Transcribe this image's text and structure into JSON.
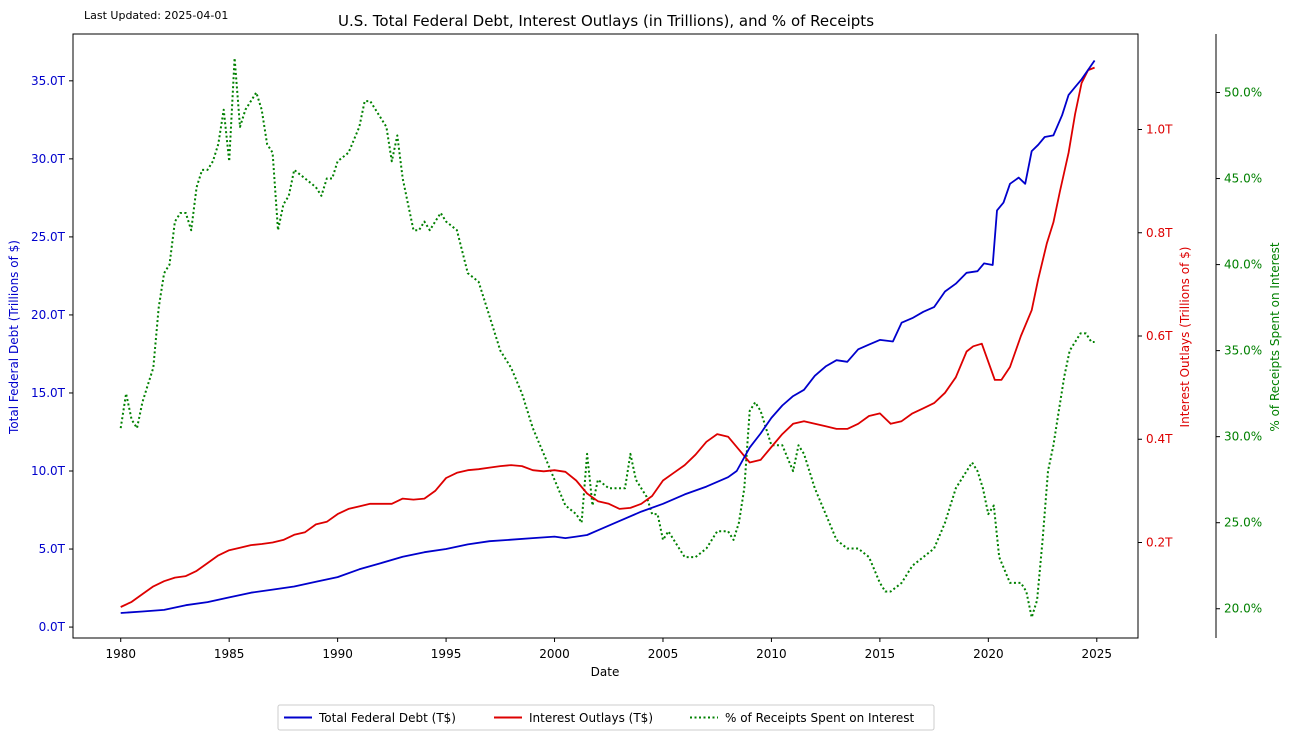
{
  "chart_data": {
    "type": "line",
    "title": "U.S. Total Federal Debt, Interest Outlays (in Trillions), and % of Receipts",
    "annotation": "Last Updated: 2025-04-01",
    "xlabel": "Date",
    "xlim": [
      1977.8,
      2026.9
    ],
    "xticks": [
      1980,
      1985,
      1990,
      1995,
      2000,
      2005,
      2010,
      2015,
      2020,
      2025
    ],
    "xtick_labels": [
      "1980",
      "1985",
      "1990",
      "1995",
      "2000",
      "2005",
      "2010",
      "2015",
      "2020",
      "2025"
    ],
    "grid": false,
    "legend_position": "bottom-center-outside",
    "axes": {
      "left": {
        "label": "Total Federal Debt (Trillions of $)",
        "color": "#0000cc",
        "ylim": [
          -0.7,
          38.0
        ],
        "ticks": [
          0,
          5,
          10,
          15,
          20,
          25,
          30,
          35
        ],
        "tick_labels": [
          "0.0T",
          "5.0T",
          "10.0T",
          "15.0T",
          "20.0T",
          "25.0T",
          "30.0T",
          "35.0T"
        ]
      },
      "right": {
        "label": "Interest Outlays (Trillions of $)",
        "color": "#dd0000",
        "ylim": [
          0.015,
          1.185
        ],
        "ticks": [
          0.2,
          0.4,
          0.6,
          0.8,
          1.0
        ],
        "tick_labels": [
          "0.2T",
          "0.4T",
          "0.6T",
          "0.8T",
          "1.0T"
        ]
      },
      "right_outer": {
        "label": "% of Receipts Spent on Interest",
        "color": "#008000",
        "ylim": [
          18.3,
          53.4
        ],
        "ticks": [
          20,
          25,
          30,
          35,
          40,
          45,
          50
        ],
        "tick_labels": [
          "20.0%",
          "25.0%",
          "30.0%",
          "35.0%",
          "40.0%",
          "45.0%",
          "50.0%"
        ]
      }
    },
    "series": [
      {
        "name": "Total Federal Debt (T$)",
        "axis": "left",
        "color": "#0000cc",
        "style": "solid",
        "x": [
          1980.0,
          1981.0,
          1982.0,
          1983.0,
          1984.0,
          1985.0,
          1986.0,
          1987.0,
          1988.0,
          1989.0,
          1990.0,
          1991.0,
          1992.0,
          1993.0,
          1994.0,
          1995.0,
          1996.0,
          1997.0,
          1998.0,
          1999.0,
          2000.0,
          2000.5,
          2001.0,
          2001.5,
          2002.0,
          2003.0,
          2004.0,
          2005.0,
          2006.0,
          2007.0,
          2008.0,
          2008.4,
          2009.0,
          2009.5,
          2010.0,
          2010.5,
          2011.0,
          2011.5,
          2012.0,
          2012.5,
          2013.0,
          2013.5,
          2014.0,
          2014.5,
          2015.0,
          2015.6,
          2016.0,
          2016.5,
          2017.0,
          2017.5,
          2018.0,
          2018.5,
          2019.0,
          2019.5,
          2019.8,
          2020.2,
          2020.4,
          2020.7,
          2021.0,
          2021.4,
          2021.7,
          2022.0,
          2022.3,
          2022.6,
          2023.0,
          2023.4,
          2023.7,
          2024.0,
          2024.3,
          2024.6,
          2024.9
        ],
        "values": [
          0.9,
          1.0,
          1.1,
          1.4,
          1.6,
          1.9,
          2.2,
          2.4,
          2.6,
          2.9,
          3.2,
          3.7,
          4.1,
          4.5,
          4.8,
          5.0,
          5.3,
          5.5,
          5.6,
          5.7,
          5.8,
          5.7,
          5.8,
          5.9,
          6.2,
          6.8,
          7.4,
          7.9,
          8.5,
          9.0,
          9.6,
          10.0,
          11.5,
          12.4,
          13.4,
          14.2,
          14.8,
          15.2,
          16.1,
          16.7,
          17.1,
          17.0,
          17.8,
          18.1,
          18.4,
          18.3,
          19.5,
          19.8,
          20.2,
          20.5,
          21.5,
          22.0,
          22.7,
          22.8,
          23.3,
          23.2,
          26.7,
          27.2,
          28.4,
          28.8,
          28.4,
          30.5,
          30.9,
          31.4,
          31.5,
          32.8,
          34.1,
          34.6,
          35.1,
          35.7,
          36.3
        ]
      },
      {
        "name": "Interest Outlays (T$)",
        "axis": "right",
        "color": "#dd0000",
        "style": "solid",
        "x": [
          1980.0,
          1980.5,
          1981.0,
          1981.5,
          1982.0,
          1982.5,
          1983.0,
          1983.5,
          1984.0,
          1984.5,
          1985.0,
          1985.5,
          1986.0,
          1986.5,
          1987.0,
          1987.5,
          1988.0,
          1988.5,
          1989.0,
          1989.5,
          1990.0,
          1990.5,
          1991.0,
          1991.5,
          1992.0,
          1992.5,
          1993.0,
          1993.5,
          1994.0,
          1994.5,
          1995.0,
          1995.5,
          1996.0,
          1996.5,
          1997.0,
          1997.5,
          1998.0,
          1998.5,
          1999.0,
          1999.5,
          2000.0,
          2000.5,
          2001.0,
          2001.5,
          2002.0,
          2002.5,
          2003.0,
          2003.5,
          2004.0,
          2004.5,
          2005.0,
          2005.5,
          2006.0,
          2006.5,
          2007.0,
          2007.5,
          2008.0,
          2008.5,
          2009.0,
          2009.5,
          2010.0,
          2010.5,
          2011.0,
          2011.5,
          2012.0,
          2012.5,
          2013.0,
          2013.5,
          2014.0,
          2014.5,
          2015.0,
          2015.5,
          2016.0,
          2016.5,
          2017.0,
          2017.5,
          2018.0,
          2018.5,
          2019.0,
          2019.3,
          2019.7,
          2020.0,
          2020.3,
          2020.6,
          2021.0,
          2021.5,
          2022.0,
          2022.3,
          2022.7,
          2023.0,
          2023.3,
          2023.7,
          2024.0,
          2024.3,
          2024.6,
          2024.9
        ],
        "values": [
          0.075,
          0.085,
          0.1,
          0.115,
          0.125,
          0.132,
          0.135,
          0.145,
          0.16,
          0.175,
          0.185,
          0.19,
          0.195,
          0.197,
          0.2,
          0.205,
          0.215,
          0.22,
          0.235,
          0.24,
          0.255,
          0.265,
          0.27,
          0.275,
          0.275,
          0.275,
          0.285,
          0.283,
          0.285,
          0.3,
          0.325,
          0.335,
          0.34,
          0.342,
          0.345,
          0.348,
          0.35,
          0.348,
          0.34,
          0.338,
          0.34,
          0.337,
          0.32,
          0.295,
          0.28,
          0.275,
          0.265,
          0.267,
          0.275,
          0.29,
          0.32,
          0.335,
          0.35,
          0.37,
          0.395,
          0.41,
          0.405,
          0.38,
          0.355,
          0.36,
          0.385,
          0.41,
          0.43,
          0.435,
          0.43,
          0.425,
          0.42,
          0.42,
          0.43,
          0.445,
          0.45,
          0.43,
          0.435,
          0.45,
          0.46,
          0.47,
          0.49,
          0.52,
          0.57,
          0.58,
          0.585,
          0.55,
          0.515,
          0.515,
          0.54,
          0.6,
          0.65,
          0.71,
          0.78,
          0.82,
          0.88,
          0.955,
          1.03,
          1.09,
          1.115,
          1.12
        ]
      },
      {
        "name": "% of Receipts Spent on Interest",
        "axis": "right_outer",
        "color": "#008000",
        "style": "dotted",
        "x": [
          1980.0,
          1980.25,
          1980.5,
          1980.75,
          1981.0,
          1981.25,
          1981.5,
          1981.75,
          1982.0,
          1982.25,
          1982.5,
          1982.75,
          1983.0,
          1983.25,
          1983.5,
          1983.75,
          1984.0,
          1984.25,
          1984.5,
          1984.75,
          1985.0,
          1985.25,
          1985.5,
          1985.75,
          1986.0,
          1986.25,
          1986.5,
          1986.75,
          1987.0,
          1987.25,
          1987.5,
          1987.75,
          1988.0,
          1988.5,
          1989.0,
          1989.25,
          1989.5,
          1989.75,
          1990.0,
          1990.5,
          1991.0,
          1991.25,
          1991.5,
          1991.75,
          1992.0,
          1992.25,
          1992.5,
          1992.75,
          1993.0,
          1993.25,
          1993.5,
          1993.75,
          1994.0,
          1994.25,
          1994.5,
          1994.75,
          1995.0,
          1995.5,
          1996.0,
          1996.5,
          1997.0,
          1997.5,
          1998.0,
          1998.5,
          1999.0,
          1999.5,
          2000.0,
          2000.5,
          2001.0,
          2001.25,
          2001.5,
          2001.75,
          2002.0,
          2002.5,
          2003.0,
          2003.25,
          2003.5,
          2003.75,
          2004.0,
          2004.25,
          2004.5,
          2004.75,
          2005.0,
          2005.25,
          2005.5,
          2005.75,
          2006.0,
          2006.5,
          2007.0,
          2007.5,
          2008.0,
          2008.25,
          2008.5,
          2008.75,
          2009.0,
          2009.25,
          2009.5,
          2009.75,
          2010.0,
          2010.5,
          2011.0,
          2011.25,
          2011.5,
          2012.0,
          2012.5,
          2013.0,
          2013.5,
          2014.0,
          2014.5,
          2015.0,
          2015.25,
          2015.5,
          2016.0,
          2016.5,
          2017.0,
          2017.5,
          2018.0,
          2018.5,
          2019.0,
          2019.25,
          2019.5,
          2019.75,
          2020.0,
          2020.25,
          2020.5,
          2021.0,
          2021.5,
          2021.75,
          2022.0,
          2022.25,
          2022.5,
          2022.75,
          2023.0,
          2023.25,
          2023.5,
          2023.75,
          2024.0,
          2024.25,
          2024.5,
          2024.75,
          2024.9
        ],
        "values": [
          30.5,
          32.5,
          31.0,
          30.5,
          32.0,
          33.0,
          34.0,
          37.5,
          39.5,
          40.0,
          42.5,
          43.0,
          43.0,
          42.0,
          44.5,
          45.5,
          45.5,
          46.0,
          47.0,
          49.0,
          46.0,
          52.0,
          48.0,
          49.0,
          49.5,
          50.0,
          49.0,
          47.0,
          46.5,
          42.0,
          43.5,
          44.0,
          45.5,
          45.0,
          44.5,
          44.0,
          45.0,
          45.0,
          46.0,
          46.5,
          48.0,
          49.5,
          49.5,
          49.0,
          48.5,
          48.0,
          46.0,
          47.5,
          45.0,
          43.5,
          42.0,
          42.0,
          42.5,
          42.0,
          42.5,
          43.0,
          42.5,
          42.0,
          39.5,
          39.0,
          37.0,
          35.0,
          34.0,
          32.5,
          30.5,
          29.0,
          27.5,
          26.0,
          25.5,
          25.0,
          29.0,
          26.0,
          27.5,
          27.0,
          27.0,
          27.0,
          29.0,
          27.5,
          27.0,
          26.5,
          25.5,
          25.5,
          24.0,
          24.5,
          24.0,
          23.5,
          23.0,
          23.0,
          23.5,
          24.5,
          24.5,
          24.0,
          25.0,
          27.0,
          31.5,
          32.0,
          31.5,
          30.5,
          29.5,
          29.5,
          28.0,
          29.5,
          29.0,
          27.0,
          25.5,
          24.0,
          23.5,
          23.5,
          23.0,
          21.5,
          21.0,
          21.0,
          21.5,
          22.5,
          23.0,
          23.5,
          25.0,
          27.0,
          28.0,
          28.5,
          28.0,
          27.0,
          25.5,
          26.0,
          23.0,
          21.5,
          21.5,
          21.0,
          19.5,
          20.5,
          24.0,
          28.0,
          29.5,
          31.5,
          33.5,
          35.0,
          35.5,
          36.0,
          36.0,
          35.5,
          35.5
        ]
      }
    ]
  },
  "legend": {
    "items": [
      {
        "label": "Total Federal Debt (T$)",
        "color": "#0000cc",
        "style": "solid"
      },
      {
        "label": "Interest Outlays (T$)",
        "color": "#dd0000",
        "style": "solid"
      },
      {
        "label": "% of Receipts Spent on Interest",
        "color": "#008000",
        "style": "dotted"
      }
    ]
  }
}
